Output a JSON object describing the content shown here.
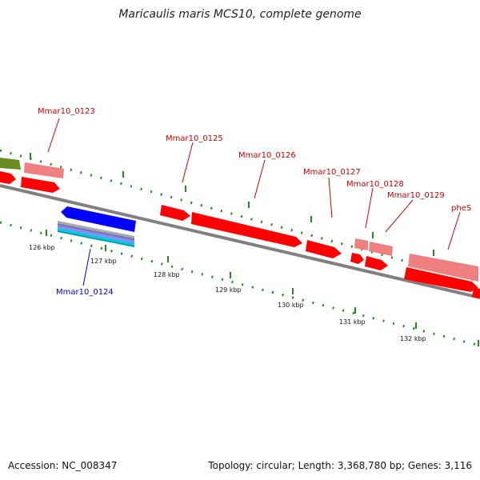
{
  "title": "Maricaulis maris MCS10, complete genome",
  "footer": {
    "accession": "Accession: NC_008347",
    "topology": "Topology: circular; Length: 3,368,780 bp; Genes: 3,116"
  },
  "colors": {
    "cds_forward": "#ff0000",
    "cds_light": "#f08080",
    "cds_reverse": "#0000ff",
    "rna": "#6b8e23",
    "tick": "#228b22",
    "backbone": "#808080"
  },
  "labels": {
    "gene_0123": "Mmar10_0123",
    "gene_0124": "Mmar10_0124",
    "gene_0125": "Mmar10_0125",
    "gene_0126": "Mmar10_0126",
    "gene_0127": "Mmar10_0127",
    "gene_0128": "Mmar10_0128",
    "gene_0129": "Mmar10_0129",
    "gene_phes": "pheS"
  },
  "kbp": {
    "k126": "126 kbp",
    "k127": "127 kbp",
    "k128": "128 kbp",
    "k129": "129 kbp",
    "k130": "130 kbp",
    "k131": "131 kbp",
    "k132": "132 kbp"
  }
}
